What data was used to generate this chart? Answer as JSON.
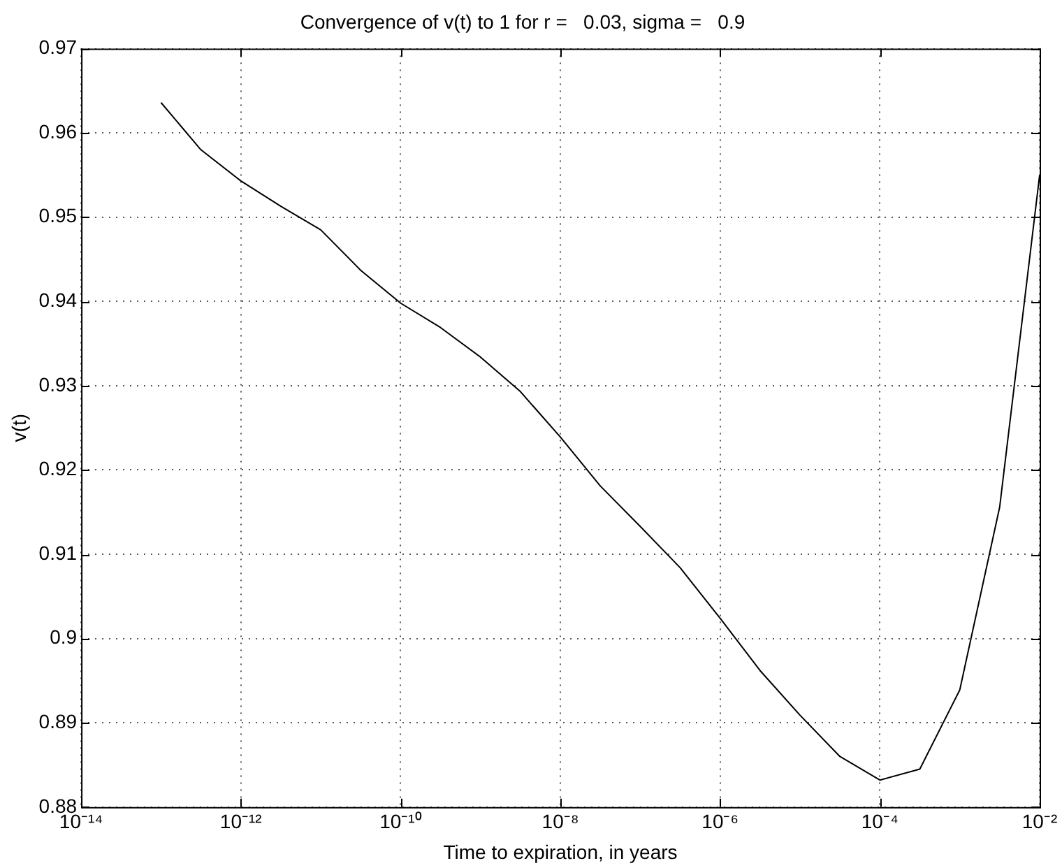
{
  "chart_data": {
    "type": "line",
    "title": "Convergence of v(t) to 1 for r =   0.03, sigma =   0.9",
    "xlabel": "Time to expiration, in years",
    "ylabel": "v(t)",
    "log": "x",
    "grid": true,
    "legend": false,
    "marker": "none",
    "line_style": "solid",
    "xlim": [
      1e-14,
      0.01
    ],
    "xticks": [
      {
        "value": 1e-14,
        "label": "10⁻¹⁴"
      },
      {
        "value": 1e-12,
        "label": "10⁻¹²"
      },
      {
        "value": 1e-10,
        "label": "10⁻¹⁰"
      },
      {
        "value": 1e-08,
        "label": "10⁻⁸"
      },
      {
        "value": 1e-06,
        "label": "10⁻⁶"
      },
      {
        "value": 0.0001,
        "label": "10⁻⁴"
      },
      {
        "value": 0.01,
        "label": "10⁻²"
      }
    ],
    "ylim": [
      0.88,
      0.97
    ],
    "yticks": [
      0.88,
      0.89,
      0.9,
      0.91,
      0.92,
      0.93,
      0.94,
      0.95,
      0.96,
      0.97
    ],
    "x": [
      1e-13,
      3.16e-13,
      1e-12,
      3.16e-12,
      1e-11,
      3.16e-11,
      1e-10,
      3.16e-10,
      1e-09,
      3.16e-09,
      1e-08,
      3.16e-08,
      1e-07,
      3.16e-07,
      1e-06,
      3.16e-06,
      1e-05,
      3.16e-05,
      0.0001,
      0.000316,
      0.001,
      0.00316,
      0.01
    ],
    "series": [
      {
        "color": "#000000",
        "values": [
          0.9636,
          0.958,
          0.9543,
          0.9513,
          0.9485,
          0.9437,
          0.9398,
          0.9369,
          0.9334,
          0.9293,
          0.9239,
          0.9181,
          0.9133,
          0.9084,
          0.9024,
          0.8962,
          0.8909,
          0.886,
          0.8832,
          0.8845,
          0.8939,
          0.9156,
          0.955
        ]
      }
    ]
  }
}
